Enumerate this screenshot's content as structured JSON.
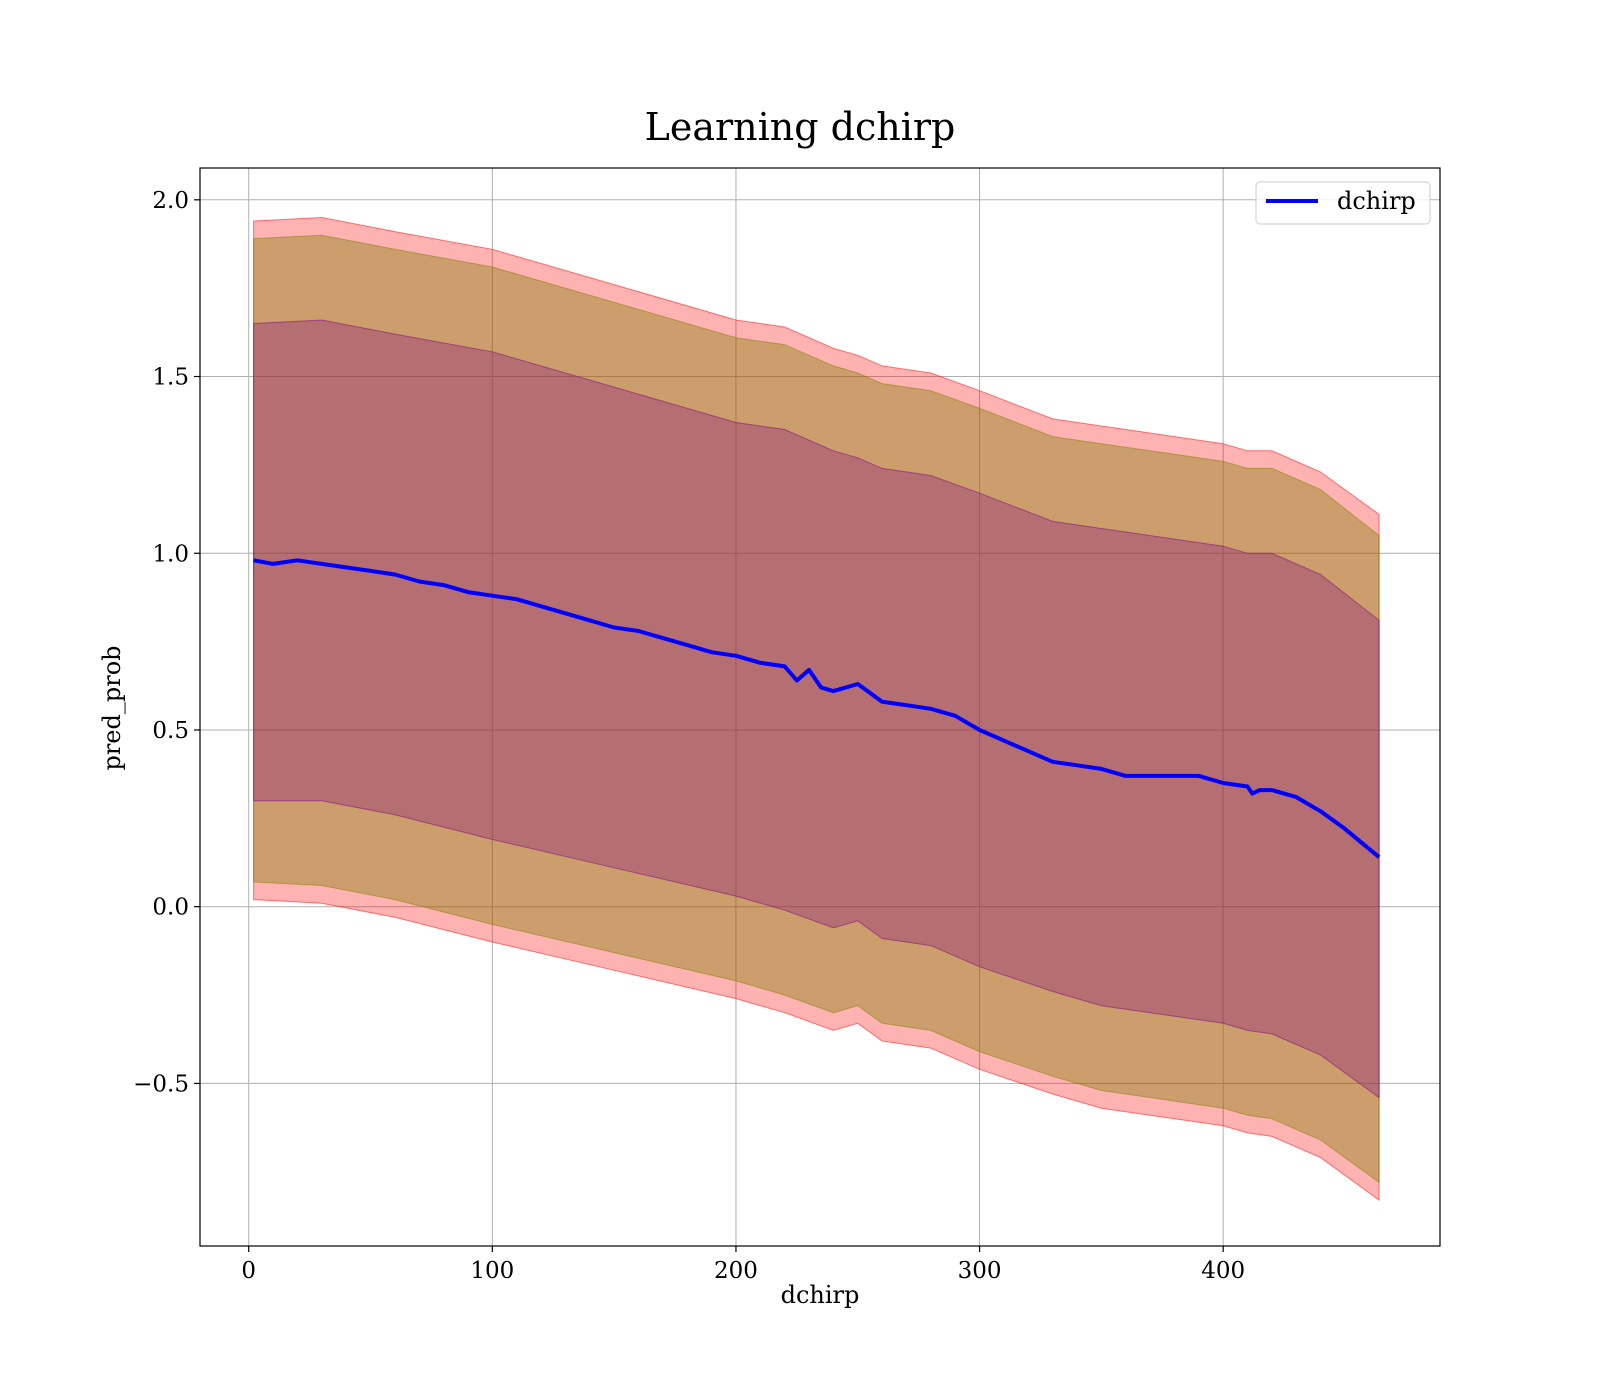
{
  "chart_data": {
    "type": "line",
    "title": "Learning dchirp",
    "xlabel": "dchirp",
    "ylabel": "pred_prob",
    "xlim": [
      -20,
      489
    ],
    "ylim": [
      -0.96,
      2.09
    ],
    "xticks": [
      0,
      100,
      200,
      300,
      400
    ],
    "xtick_labels": [
      "0",
      "100",
      "200",
      "300",
      "400"
    ],
    "yticks": [
      -0.5,
      0.0,
      0.5,
      1.0,
      1.5,
      2.0
    ],
    "ytick_labels": [
      "−0.5",
      "0.0",
      "0.5",
      "1.0",
      "1.5",
      "2.0"
    ],
    "grid": true,
    "legend_position": "upper right",
    "series": [
      {
        "name": "dchirp",
        "color": "#0000ff",
        "x": [
          2,
          10,
          20,
          30,
          40,
          50,
          60,
          70,
          80,
          90,
          100,
          110,
          120,
          130,
          140,
          150,
          160,
          170,
          180,
          190,
          200,
          210,
          220,
          225,
          230,
          235,
          240,
          250,
          260,
          270,
          280,
          290,
          300,
          310,
          320,
          330,
          340,
          350,
          360,
          370,
          380,
          390,
          400,
          410,
          412,
          415,
          420,
          430,
          440,
          450,
          464
        ],
        "values": [
          0.98,
          0.97,
          0.98,
          0.97,
          0.96,
          0.95,
          0.94,
          0.92,
          0.91,
          0.89,
          0.88,
          0.87,
          0.85,
          0.83,
          0.81,
          0.79,
          0.78,
          0.76,
          0.74,
          0.72,
          0.71,
          0.69,
          0.68,
          0.64,
          0.67,
          0.62,
          0.61,
          0.63,
          0.58,
          0.57,
          0.56,
          0.54,
          0.5,
          0.47,
          0.44,
          0.41,
          0.4,
          0.39,
          0.37,
          0.37,
          0.37,
          0.37,
          0.35,
          0.34,
          0.32,
          0.33,
          0.33,
          0.31,
          0.27,
          0.22,
          0.14
        ]
      }
    ],
    "bands": [
      {
        "color": "#ff0000",
        "opacity": 0.3,
        "x": [
          2,
          30,
          60,
          100,
          150,
          200,
          220,
          240,
          250,
          260,
          280,
          300,
          330,
          350,
          380,
          400,
          410,
          420,
          440,
          464
        ],
        "upper": [
          1.94,
          1.95,
          1.91,
          1.86,
          1.76,
          1.66,
          1.64,
          1.58,
          1.56,
          1.53,
          1.51,
          1.46,
          1.38,
          1.36,
          1.33,
          1.31,
          1.29,
          1.29,
          1.23,
          1.11
        ],
        "lower": [
          0.02,
          0.01,
          -0.03,
          -0.1,
          -0.18,
          -0.26,
          -0.3,
          -0.35,
          -0.33,
          -0.38,
          -0.4,
          -0.46,
          -0.53,
          -0.57,
          -0.6,
          -0.62,
          -0.64,
          -0.65,
          -0.71,
          -0.83
        ]
      },
      {
        "color": "#808000",
        "opacity": 0.4,
        "x": [
          2,
          30,
          60,
          100,
          150,
          200,
          220,
          240,
          250,
          260,
          280,
          300,
          330,
          350,
          380,
          400,
          410,
          420,
          440,
          464
        ],
        "upper": [
          1.89,
          1.9,
          1.86,
          1.81,
          1.71,
          1.61,
          1.59,
          1.53,
          1.51,
          1.48,
          1.46,
          1.41,
          1.33,
          1.31,
          1.28,
          1.26,
          1.24,
          1.24,
          1.18,
          1.05
        ],
        "lower": [
          0.07,
          0.06,
          0.02,
          -0.05,
          -0.13,
          -0.21,
          -0.25,
          -0.3,
          -0.28,
          -0.33,
          -0.35,
          -0.41,
          -0.48,
          -0.52,
          -0.55,
          -0.57,
          -0.59,
          -0.6,
          -0.66,
          -0.78
        ]
      },
      {
        "color": "#800080",
        "opacity": 0.3,
        "x": [
          2,
          30,
          60,
          100,
          150,
          200,
          220,
          240,
          250,
          260,
          280,
          300,
          330,
          350,
          380,
          400,
          410,
          420,
          440,
          464
        ],
        "upper": [
          1.65,
          1.66,
          1.62,
          1.57,
          1.47,
          1.37,
          1.35,
          1.29,
          1.27,
          1.24,
          1.22,
          1.17,
          1.09,
          1.07,
          1.04,
          1.02,
          1.0,
          1.0,
          0.94,
          0.81
        ],
        "lower": [
          0.3,
          0.3,
          0.26,
          0.19,
          0.11,
          0.03,
          -0.01,
          -0.06,
          -0.04,
          -0.09,
          -0.11,
          -0.17,
          -0.24,
          -0.28,
          -0.31,
          -0.33,
          -0.35,
          -0.36,
          -0.42,
          -0.54
        ]
      }
    ]
  }
}
